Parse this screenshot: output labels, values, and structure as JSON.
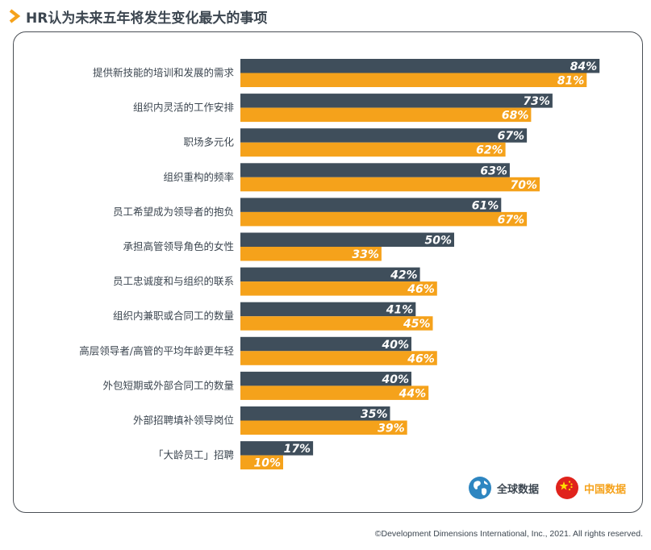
{
  "title": "HR认为未来五年将发生变化最大的事项",
  "colors": {
    "global": "#3f4e5b",
    "china": "#f5a21b",
    "accent": "#f5a21b"
  },
  "legend": {
    "global_label": "全球数据",
    "china_label": "中国数据"
  },
  "footer": "©Development Dimensions International, Inc., 2021. All rights reserved.",
  "chart_data": {
    "type": "bar",
    "orientation": "horizontal",
    "title": "HR认为未来五年将发生变化最大的事项",
    "value_suffix": "%",
    "xlim": [
      0,
      100
    ],
    "categories": [
      "提供新技能的培训和发展的需求",
      "组织内灵活的工作安排",
      "职场多元化",
      "组织重构的频率",
      "员工希望成为领导者的抱负",
      "承担高管领导角色的女性",
      "员工忠诚度和与组织的联系",
      "组织内兼职或合同工的数量",
      "高层领导者/高管的平均年龄更年轻",
      "外包短期或外部合同工的数量",
      "外部招聘填补领导岗位",
      "「大龄员工」招聘"
    ],
    "series": [
      {
        "name": "全球数据",
        "color": "#3f4e5b",
        "values": [
          84,
          73,
          67,
          63,
          61,
          50,
          42,
          41,
          40,
          40,
          35,
          17
        ]
      },
      {
        "name": "中国数据",
        "color": "#f5a21b",
        "values": [
          81,
          68,
          62,
          70,
          67,
          33,
          46,
          45,
          46,
          44,
          39,
          10
        ]
      }
    ],
    "legend_position": "bottom-right",
    "grid": false
  }
}
